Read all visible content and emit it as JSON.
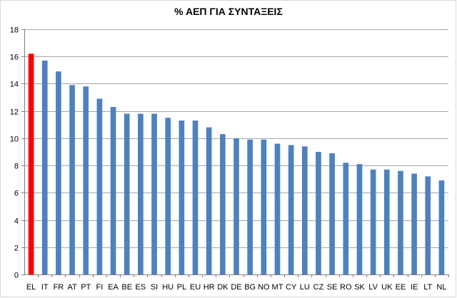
{
  "chart_data": {
    "type": "bar",
    "title": "% ΑΕΠ ΓΙΑ ΣΥΝΤΑΞΕΙΣ",
    "xlabel": "",
    "ylabel": "",
    "ylim": [
      0,
      18
    ],
    "yticks": [
      0,
      2,
      4,
      6,
      8,
      10,
      12,
      14,
      16,
      18
    ],
    "grid": true,
    "legend": "none",
    "categories": [
      "EL",
      "IT",
      "FR",
      "AT",
      "PT",
      "FI",
      "EA",
      "BE",
      "ES",
      "SI",
      "HU",
      "PL",
      "EU",
      "HR",
      "DK",
      "DE",
      "BG",
      "NO",
      "MT",
      "CY",
      "LU",
      "CZ",
      "SE",
      "RO",
      "SK",
      "LV",
      "UK",
      "EE",
      "IE",
      "LT",
      "NL"
    ],
    "values": [
      16.2,
      15.7,
      14.9,
      13.9,
      13.8,
      12.9,
      12.3,
      11.8,
      11.8,
      11.8,
      11.5,
      11.3,
      11.3,
      10.8,
      10.3,
      10.0,
      9.9,
      9.9,
      9.6,
      9.5,
      9.4,
      9.0,
      8.9,
      8.2,
      8.1,
      7.7,
      7.7,
      7.6,
      7.4,
      7.2,
      6.9
    ],
    "colors": {
      "default": "#4f81bd",
      "highlight": "#ff0000",
      "highlight_category": "EL",
      "gridline": "#a6a6a6",
      "axis": "#808080"
    }
  }
}
